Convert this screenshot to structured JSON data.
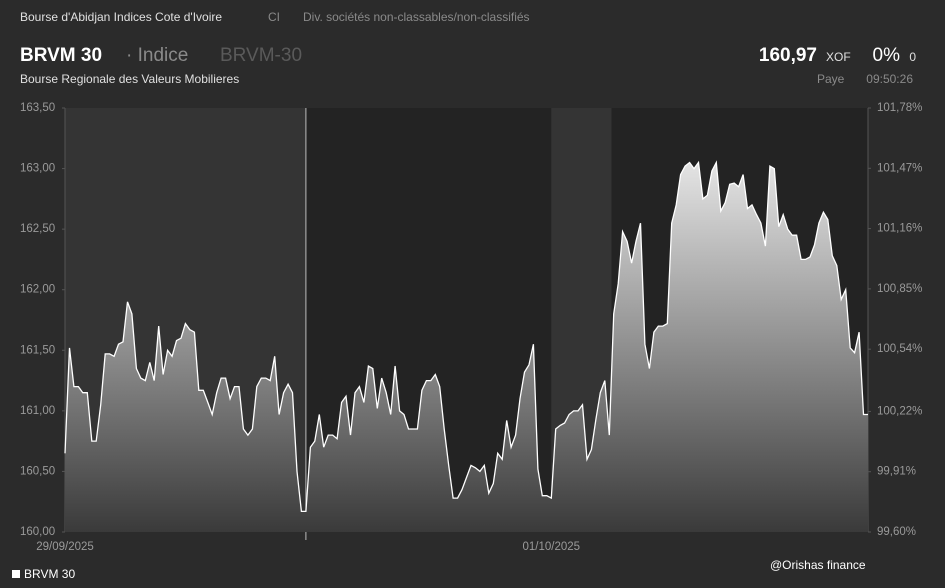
{
  "header": {
    "exchange": "Bourse d'Abidjan Indices Cote d'Ivoire",
    "country": "CI",
    "sector": "Div. sociétés non-classables/non-classifiés",
    "symbol": "BRVM 30",
    "kind": "· Indice",
    "code": "BRVM-30",
    "issuer": "Bourse Regionale des Valeurs Mobilieres",
    "price": "160,97",
    "currency": "XOF",
    "change_pct": "0%",
    "change": "0",
    "status": "Paye",
    "time": "09:50:26"
  },
  "chart_data": {
    "type": "area",
    "categories": [
      "29/09/2025",
      null,
      null,
      null,
      null,
      null,
      null,
      null,
      null,
      null,
      null,
      null,
      null,
      null,
      null,
      null,
      null,
      null,
      null,
      null,
      null,
      null,
      null,
      null,
      null,
      null,
      null,
      null,
      null,
      null,
      null,
      null,
      null,
      null,
      null,
      null,
      null,
      null,
      null,
      null,
      null,
      null,
      null,
      null,
      null,
      null,
      null,
      null,
      null,
      null,
      null,
      null,
      null,
      null,
      null,
      null,
      null,
      null,
      null,
      null,
      null,
      null,
      null,
      null,
      null,
      null,
      null,
      null,
      null,
      null,
      null,
      null,
      null,
      null,
      null,
      null,
      null,
      null,
      null,
      null,
      null,
      null,
      null,
      null,
      null,
      null,
      null,
      null,
      null,
      null,
      null,
      null,
      null,
      null,
      null,
      null,
      null,
      null,
      null,
      null,
      null,
      null,
      null,
      null,
      null,
      null,
      null,
      null,
      null,
      "01/10/2025",
      null,
      null,
      null,
      null,
      null,
      null,
      null,
      null,
      null,
      null,
      null,
      null,
      null,
      null,
      null,
      null,
      null,
      null,
      null,
      null,
      null,
      null,
      null,
      null,
      null,
      null,
      null,
      null,
      null,
      null,
      null,
      null,
      null,
      null,
      null,
      null,
      null,
      null,
      null,
      null,
      null,
      null,
      null,
      null,
      null,
      null,
      null,
      null,
      null,
      null,
      null,
      null,
      null,
      null,
      null,
      null,
      null,
      null,
      null,
      null,
      null,
      null,
      null,
      null,
      null,
      null,
      null,
      null,
      null,
      null,
      null
    ],
    "series": [
      {
        "name": "BRVM 30",
        "color": "#ffffff",
        "values": [
          160.65,
          161.52,
          161.2,
          161.2,
          161.15,
          161.15,
          160.75,
          160.75,
          161.05,
          161.47,
          161.47,
          161.45,
          161.55,
          161.57,
          161.9,
          161.8,
          161.35,
          161.27,
          161.25,
          161.4,
          161.25,
          161.7,
          161.3,
          161.5,
          161.45,
          161.58,
          161.6,
          161.72,
          161.67,
          161.65,
          161.17,
          161.17,
          161.07,
          160.97,
          161.15,
          161.27,
          161.27,
          161.1,
          161.2,
          161.2,
          160.85,
          160.8,
          160.85,
          161.2,
          161.27,
          161.27,
          161.25,
          161.45,
          160.97,
          161.15,
          161.22,
          161.15,
          160.5,
          160.17,
          160.17,
          160.7,
          160.75,
          160.97,
          160.7,
          160.8,
          160.8,
          160.77,
          161.07,
          161.12,
          160.8,
          161.15,
          161.2,
          161.07,
          161.37,
          161.35,
          161.02,
          161.27,
          161.15,
          160.97,
          161.37,
          161.0,
          160.97,
          160.85,
          160.85,
          160.85,
          161.17,
          161.25,
          161.25,
          161.3,
          161.2,
          160.85,
          160.55,
          160.28,
          160.28,
          160.35,
          160.45,
          160.55,
          160.53,
          160.5,
          160.55,
          160.32,
          160.4,
          160.65,
          160.6,
          160.92,
          160.7,
          160.8,
          161.1,
          161.32,
          161.38,
          161.55,
          160.52,
          160.3,
          160.3,
          160.28,
          160.85,
          160.88,
          160.9,
          160.97,
          161.0,
          161.0,
          161.05,
          160.6,
          160.68,
          160.93,
          161.15,
          161.25,
          160.8,
          161.8,
          162.05,
          162.48,
          162.4,
          162.22,
          162.4,
          162.55,
          161.55,
          161.35,
          161.65,
          161.7,
          161.7,
          161.72,
          162.55,
          162.7,
          162.95,
          163.02,
          163.05,
          163.0,
          163.05,
          162.75,
          162.78,
          162.98,
          163.05,
          162.65,
          162.72,
          162.87,
          162.88,
          162.85,
          162.95,
          162.67,
          162.7,
          162.62,
          162.55,
          162.36,
          163.02,
          163.0,
          162.52,
          162.62,
          162.5,
          162.45,
          162.45,
          162.25,
          162.25,
          162.27,
          162.37,
          162.55,
          162.64,
          162.58,
          162.28,
          162.2,
          161.92,
          162.0,
          161.52,
          161.48,
          161.65,
          160.97,
          160.97
        ]
      }
    ],
    "ylim": [
      160,
      163.5
    ],
    "yticks": [
      {
        "value": 160,
        "label": "160,00"
      },
      {
        "value": 160.5,
        "label": "160,50"
      },
      {
        "value": 161,
        "label": "161,00"
      },
      {
        "value": 161.5,
        "label": "161,50"
      },
      {
        "value": 162,
        "label": "162,00"
      },
      {
        "value": 162.5,
        "label": "162,50"
      },
      {
        "value": 163,
        "label": "163,00"
      },
      {
        "value": 163.5,
        "label": "163,50"
      }
    ],
    "y2lim": [
      99.6,
      101.78
    ],
    "y2ticks": [
      {
        "value": 99.6,
        "label": "99,60%"
      },
      {
        "value": 99.91,
        "label": "99,91%"
      },
      {
        "value": 100.22,
        "label": "100,22%"
      },
      {
        "value": 100.54,
        "label": "100,54%"
      },
      {
        "value": 100.85,
        "label": "100,85%"
      },
      {
        "value": 101.16,
        "label": "101,16%"
      },
      {
        "value": 101.47,
        "label": "101,47%"
      },
      {
        "value": 101.78,
        "label": "101,78%"
      }
    ],
    "grid": false
  },
  "footer": {
    "credit": "@Orishas finance"
  }
}
